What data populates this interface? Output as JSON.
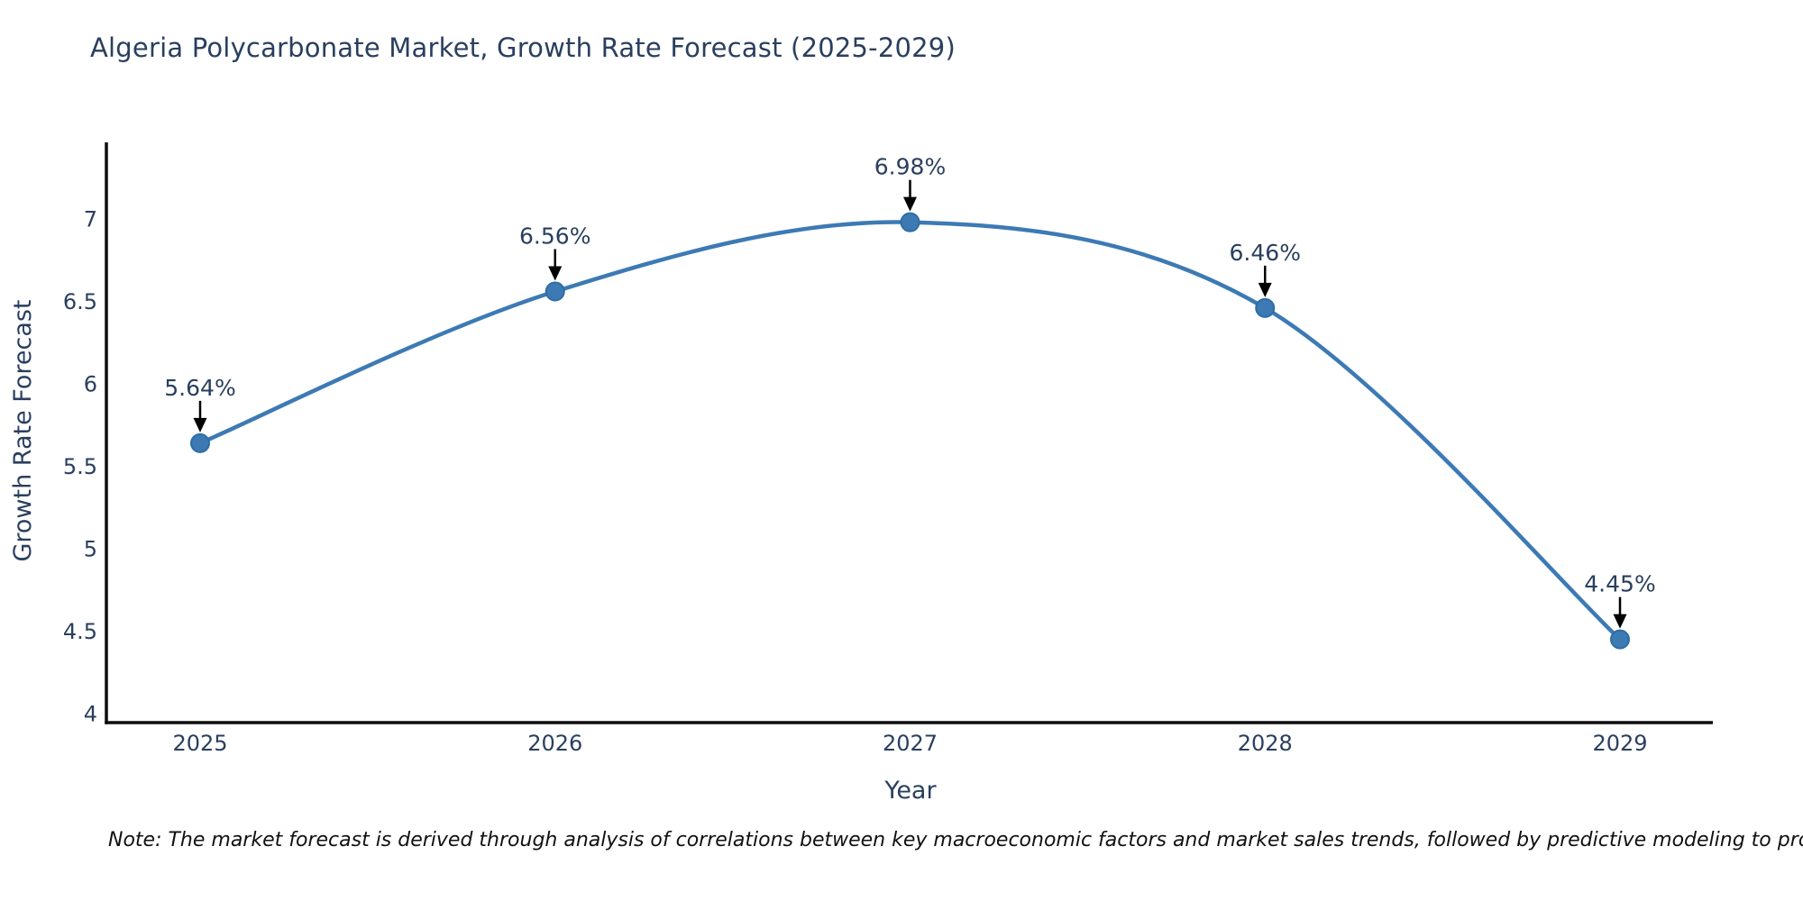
{
  "page": {
    "background": "#ffffff"
  },
  "chart_data": {
    "type": "line",
    "title": "Algeria Polycarbonate Market, Growth Rate Forecast (2025-2029)",
    "xlabel": "Year",
    "ylabel": "Growth Rate Forecast",
    "categories": [
      "2025",
      "2026",
      "2027",
      "2028",
      "2029"
    ],
    "values": [
      5.64,
      6.56,
      6.98,
      6.46,
      4.45
    ],
    "point_labels": [
      "5.64%",
      "6.56%",
      "6.98%",
      "6.46%",
      "4.45%"
    ],
    "ytick_labels": [
      "4",
      "4.5",
      "5",
      "5.5",
      "6",
      "6.5",
      "7"
    ],
    "yticks": [
      4,
      4.5,
      5,
      5.5,
      6,
      6.5,
      7
    ],
    "ylim": [
      3.95,
      7.5
    ],
    "grid": false,
    "legend": "none",
    "line_shape": "spline",
    "annotations": "arrow-down-to-point",
    "colors": {
      "line": "#3d7ab4",
      "marker": "#3d7ab4",
      "marker_edge": "#2e6da4",
      "axis": "#0d0d0d",
      "text": "#2a3f5f",
      "annotation_arrow": "#000000"
    }
  },
  "footnote": "Note: The market forecast is derived through analysis of correlations between key macroeconomic factors and market sales trends, followed by predictive modeling to project future sales"
}
